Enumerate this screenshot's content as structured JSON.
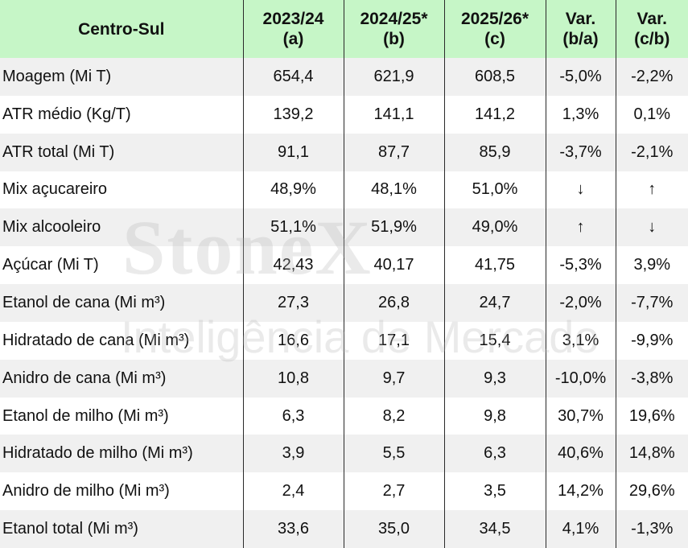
{
  "header": {
    "label": "Centro-Sul",
    "columns": [
      {
        "line1": "2023/24",
        "line2": "(a)"
      },
      {
        "line1": "2024/25*",
        "line2": "(b)"
      },
      {
        "line1": "2025/26*",
        "line2": "(c)"
      },
      {
        "line1": "Var.",
        "line2": "(b/a)"
      },
      {
        "line1": "Var.",
        "line2": "(c/b)"
      }
    ]
  },
  "rows": [
    {
      "label": "Moagem (Mi T)",
      "v": [
        "654,4",
        "621,9",
        "608,5",
        "-5,0%",
        "-2,2%"
      ]
    },
    {
      "label": "ATR médio (Kg/T)",
      "v": [
        "139,2",
        "141,1",
        "141,2",
        "1,3%",
        "0,1%"
      ]
    },
    {
      "label": "ATR total (Mi T)",
      "v": [
        "91,1",
        "87,7",
        "85,9",
        "-3,7%",
        "-2,1%"
      ]
    },
    {
      "label": "Mix açucareiro",
      "v": [
        "48,9%",
        "48,1%",
        "51,0%",
        "↓",
        "↑"
      ]
    },
    {
      "label": "Mix alcooleiro",
      "v": [
        "51,1%",
        "51,9%",
        "49,0%",
        "↑",
        "↓"
      ]
    },
    {
      "label": "Açúcar (Mi T)",
      "v": [
        "42,43",
        "40,17",
        "41,75",
        "-5,3%",
        "3,9%"
      ]
    },
    {
      "label": "Etanol de cana (Mi m³)",
      "v": [
        "27,3",
        "26,8",
        "24,7",
        "-2,0%",
        "-7,7%"
      ]
    },
    {
      "label": "Hidratado de cana (Mi m³)",
      "v": [
        "16,6",
        "17,1",
        "15,4",
        "3,1%",
        "-9,9%"
      ]
    },
    {
      "label": "Anidro de cana (Mi m³)",
      "v": [
        "10,8",
        "9,7",
        "9,3",
        "-10,0%",
        "-3,8%"
      ]
    },
    {
      "label": "Etanol de milho (Mi m³)",
      "v": [
        "6,3",
        "8,2",
        "9,8",
        "30,7%",
        "19,6%"
      ]
    },
    {
      "label": "Hidratado de milho (Mi m³)",
      "v": [
        "3,9",
        "5,5",
        "6,3",
        "40,6%",
        "14,8%"
      ]
    },
    {
      "label": "Anidro de milho (Mi m³)",
      "v": [
        "2,4",
        "2,7",
        "3,5",
        "14,2%",
        "29,6%"
      ]
    },
    {
      "label": "Etanol total (Mi m³)",
      "v": [
        "33,6",
        "35,0",
        "34,5",
        "4,1%",
        "-1,3%"
      ]
    }
  ],
  "watermark": {
    "brand": "StoneX",
    "tagline": "Inteligência de Mercado",
    "color": "#b5b5b5"
  },
  "colors": {
    "header_bg": "#c6f6c7",
    "row_shade": "#f0f0f0"
  }
}
